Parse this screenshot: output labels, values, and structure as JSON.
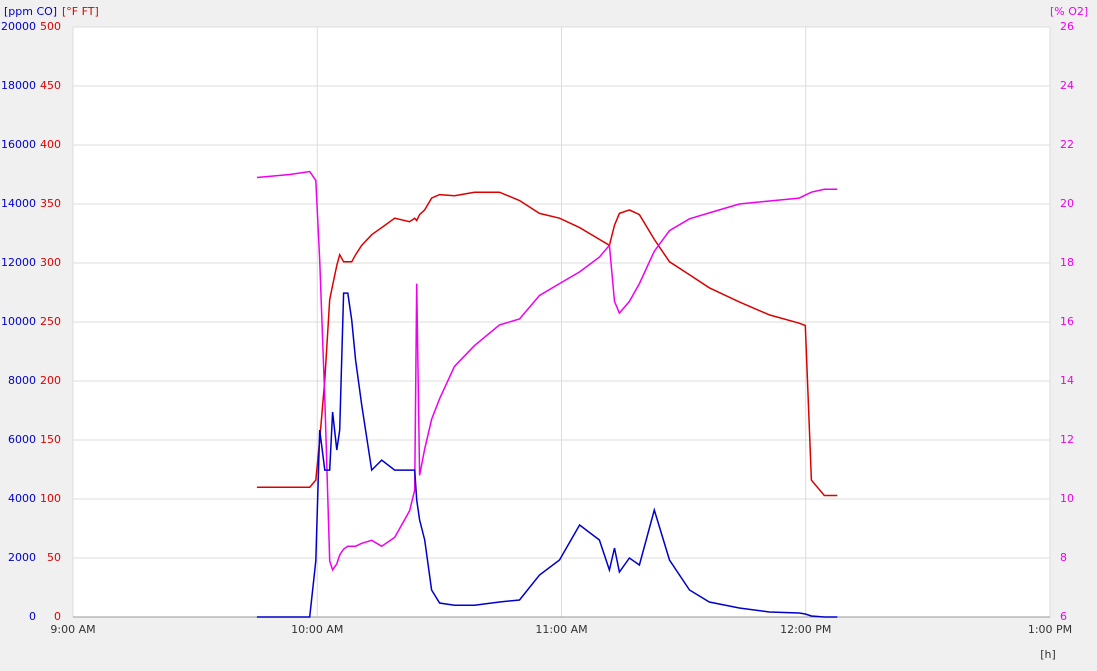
{
  "chart_data": {
    "type": "line",
    "x_label": "[h]",
    "x": [
      9.753,
      9.888,
      9.969,
      9.994,
      10.01,
      10.031,
      10.051,
      10.063,
      10.08,
      10.092,
      10.108,
      10.125,
      10.141,
      10.157,
      10.182,
      10.223,
      10.264,
      10.317,
      10.378,
      10.399,
      10.407,
      10.419,
      10.44,
      10.468,
      10.501,
      10.562,
      10.644,
      10.746,
      10.828,
      10.91,
      10.992,
      11.074,
      11.155,
      11.196,
      11.217,
      11.237,
      11.278,
      11.319,
      11.38,
      11.442,
      11.524,
      11.605,
      11.728,
      11.851,
      11.973,
      11.998,
      12.023,
      12.076,
      12.129
    ],
    "xlim": [
      9,
      13
    ],
    "xticks": [
      {
        "value": 9,
        "label": "9:00 AM"
      },
      {
        "value": 10,
        "label": "10:00 AM"
      },
      {
        "value": 11,
        "label": "11:00 AM"
      },
      {
        "value": 12,
        "label": "12:00 PM"
      },
      {
        "value": 13,
        "label": "1:00 PM"
      }
    ],
    "grid": true,
    "y_axes": [
      {
        "label": "[ppm CO]",
        "color": "#0000cc",
        "side": "left",
        "lim": [
          0,
          20000
        ],
        "ticks": [
          0,
          2000,
          4000,
          6000,
          8000,
          10000,
          12000,
          14000,
          16000,
          18000,
          20000
        ]
      },
      {
        "label": "[°F FT]",
        "color": "#dd0000",
        "side": "left",
        "lim": [
          0,
          500
        ],
        "ticks": [
          0,
          50,
          100,
          150,
          200,
          250,
          300,
          350,
          400,
          450,
          500
        ]
      },
      {
        "label": "[% O2]",
        "color": "#ee00ee",
        "side": "right",
        "lim": [
          6,
          26
        ],
        "ticks": [
          6,
          8,
          10,
          12,
          14,
          16,
          18,
          20,
          22,
          24,
          26
        ]
      }
    ],
    "series": [
      {
        "axis": 1,
        "color": "#dd0000",
        "values": [
          110,
          110,
          110,
          116,
          150,
          201,
          269,
          281,
          298,
          307,
          301,
          301,
          301,
          307,
          315,
          324,
          330,
          338,
          335,
          338,
          336,
          341,
          345,
          355,
          358,
          357,
          360,
          360,
          353,
          342,
          338,
          330,
          320,
          315,
          332,
          342,
          345,
          341,
          320,
          301,
          290,
          279,
          267,
          256,
          249,
          247,
          116,
          103,
          103
        ]
      },
      {
        "axis": 2,
        "color": "#ee00ee",
        "values": [
          20.9,
          21.0,
          21.1,
          20.8,
          18.1,
          13.4,
          7.9,
          7.6,
          7.8,
          8.1,
          8.3,
          8.4,
          8.4,
          8.4,
          8.5,
          8.6,
          8.4,
          8.7,
          9.6,
          10.3,
          17.3,
          10.8,
          11.7,
          12.7,
          13.4,
          14.5,
          15.2,
          15.9,
          16.1,
          16.9,
          17.3,
          17.7,
          18.2,
          18.6,
          16.7,
          16.3,
          16.7,
          17.3,
          18.4,
          19.1,
          19.5,
          19.7,
          20.0,
          20.1,
          20.2,
          20.3,
          20.4,
          20.5,
          20.5
        ]
      },
      {
        "axis": 0,
        "color": "#0000cc",
        "values": [
          0,
          0,
          0,
          1900,
          6340,
          4980,
          4980,
          6950,
          5660,
          6340,
          10980,
          10980,
          10070,
          8710,
          7190,
          4980,
          5320,
          4980,
          4980,
          4980,
          3970,
          3290,
          2610,
          915,
          475,
          400,
          400,
          510,
          576,
          1424,
          1932,
          3120,
          2610,
          1593,
          2340,
          1525,
          2000,
          1763,
          3627,
          1932,
          915,
          510,
          305,
          170,
          136,
          102,
          34,
          0,
          0
        ]
      }
    ]
  }
}
